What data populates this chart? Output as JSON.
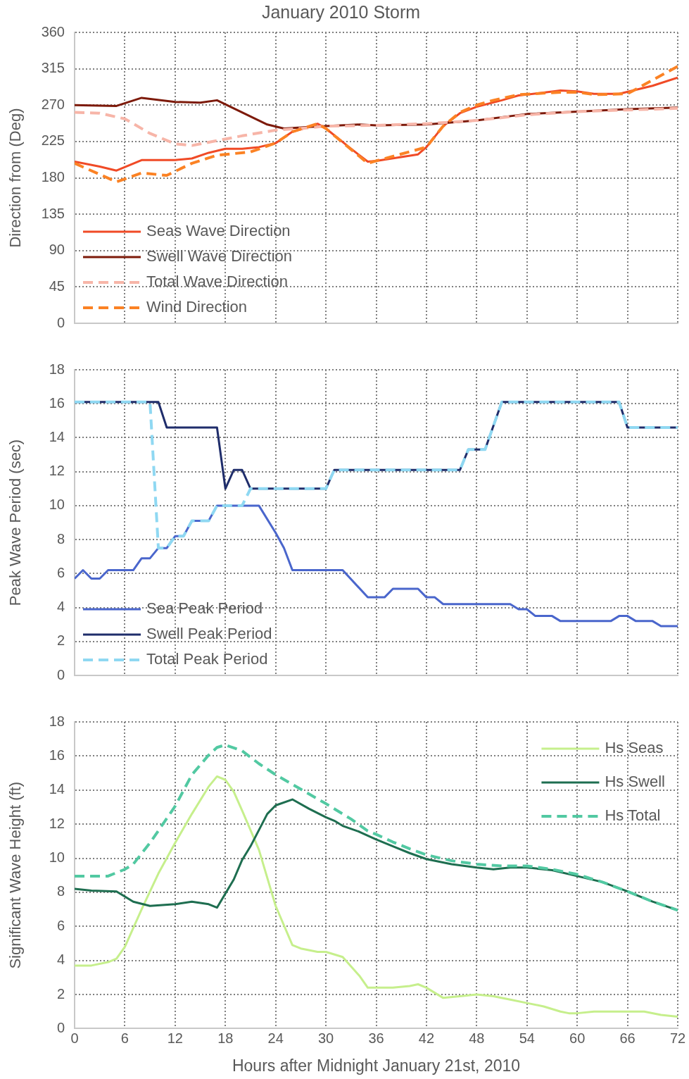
{
  "chart_data": [
    {
      "type": "line",
      "title": "January 2010 Storm",
      "ylabel": "Direction from (Deg)",
      "xlim": [
        0,
        72
      ],
      "xticks": [
        0,
        6,
        12,
        18,
        24,
        30,
        36,
        42,
        48,
        54,
        60,
        66,
        72
      ],
      "ylim": [
        0,
        360
      ],
      "yticks": [
        0,
        45,
        90,
        135,
        180,
        225,
        270,
        315,
        360
      ],
      "tick_labels": "y",
      "grid": true,
      "legend": "bottom left",
      "marker": "none",
      "series": [
        {
          "name": "Seas Wave Direction",
          "color": "#f04a26",
          "line_style": "solid",
          "x": [
            0,
            3,
            5,
            8,
            12,
            14,
            16,
            18,
            20,
            22,
            24,
            26,
            28,
            29,
            30,
            33,
            35,
            36,
            41,
            42,
            44,
            46,
            48,
            51,
            53,
            54,
            58,
            60,
            62,
            65,
            69,
            72
          ],
          "values": [
            200,
            194,
            189,
            202,
            202,
            204,
            211,
            216,
            216,
            218,
            223,
            237,
            243,
            247,
            241,
            216,
            200,
            201,
            209,
            218,
            244,
            260,
            268,
            276,
            282,
            283,
            288,
            287,
            284,
            284,
            294,
            304
          ]
        },
        {
          "name": "Swell Wave Direction",
          "color": "#7d1a0a",
          "line_style": "solid",
          "x": [
            0,
            5,
            8,
            12,
            15,
            17,
            20,
            23,
            25,
            28,
            30,
            34,
            36,
            42,
            48,
            54,
            60,
            66,
            72
          ],
          "values": [
            270,
            269,
            279,
            274,
            273,
            276,
            261,
            246,
            241,
            243,
            244,
            246,
            245,
            246,
            251,
            259,
            262,
            265,
            267
          ]
        },
        {
          "name": "Total Wave Direction",
          "color": "#f7b5a8",
          "line_style": "dashed",
          "x": [
            0,
            3,
            6,
            9,
            12,
            14,
            17,
            20,
            24,
            28,
            30,
            36,
            42,
            48,
            54,
            60,
            66,
            72
          ],
          "values": [
            261,
            260,
            253,
            235,
            222,
            220,
            226,
            232,
            239,
            242,
            244,
            245,
            247,
            251,
            258,
            262,
            264,
            266
          ]
        },
        {
          "name": "Wind Direction",
          "color": "#fb8224",
          "line_style": "dashed",
          "x": [
            0,
            5,
            8,
            11,
            14,
            17,
            21,
            24,
            26,
            29,
            30,
            35,
            36,
            42,
            44,
            46,
            48,
            50,
            53,
            58,
            60,
            62,
            66,
            69,
            72
          ],
          "values": [
            198,
            175,
            186,
            183,
            198,
            208,
            212,
            223,
            237,
            247,
            241,
            198,
            201,
            218,
            244,
            261,
            270,
            276,
            283,
            286,
            286,
            283,
            284,
            301,
            318
          ]
        }
      ]
    },
    {
      "type": "line",
      "ylabel": "Peak Wave Period (sec)",
      "xlim": [
        0,
        72
      ],
      "xticks": [
        0,
        6,
        12,
        18,
        24,
        30,
        36,
        42,
        48,
        54,
        60,
        66,
        72
      ],
      "ylim": [
        0,
        18
      ],
      "yticks": [
        0,
        2,
        4,
        6,
        8,
        10,
        12,
        14,
        16,
        18
      ],
      "tick_labels": "y",
      "grid": true,
      "legend": "bottom left",
      "marker": "none",
      "series": [
        {
          "name": "Sea Peak Period",
          "color": "#4a66cc",
          "line_style": "solid",
          "x": [
            0,
            1,
            2,
            3,
            4,
            7,
            8,
            9,
            10,
            11,
            12,
            13,
            14,
            16,
            17,
            22,
            24,
            25,
            26,
            32,
            35,
            37,
            38,
            41,
            42,
            43,
            44,
            52,
            53,
            54,
            55,
            57,
            58,
            64,
            65,
            66,
            67,
            69,
            70,
            72
          ],
          "values": [
            5.7,
            6.2,
            5.7,
            5.7,
            6.2,
            6.2,
            6.9,
            6.9,
            7.5,
            7.5,
            8.2,
            8.2,
            9.1,
            9.1,
            10,
            10,
            8.4,
            7.5,
            6.2,
            6.2,
            4.6,
            4.6,
            5.1,
            5.1,
            4.6,
            4.6,
            4.2,
            4.2,
            3.9,
            3.9,
            3.5,
            3.5,
            3.2,
            3.2,
            3.5,
            3.5,
            3.2,
            3.2,
            2.9,
            2.9
          ]
        },
        {
          "name": "Swell Peak Period",
          "color": "#1f2d6b",
          "line_style": "solid",
          "x": [
            0,
            10,
            11,
            17,
            18,
            19,
            20,
            21,
            30,
            31,
            46,
            47,
            49,
            51,
            65,
            66,
            72
          ],
          "values": [
            16.1,
            16.1,
            14.6,
            14.6,
            11,
            12.1,
            12.1,
            11,
            11,
            12.1,
            12.1,
            13.3,
            13.3,
            16.1,
            16.1,
            14.6,
            14.6
          ]
        },
        {
          "name": "Total Peak Period",
          "color": "#8fd8f2",
          "line_style": "dashed",
          "x": [
            0,
            9,
            10,
            11,
            12,
            13,
            14,
            16,
            17,
            20,
            21,
            30,
            31,
            46,
            47,
            49,
            51,
            65,
            66,
            72
          ],
          "values": [
            16.1,
            16.1,
            7.5,
            7.5,
            8.2,
            8.2,
            9.1,
            9.1,
            10,
            10,
            11,
            11,
            12.1,
            12.1,
            13.3,
            13.3,
            16.1,
            16.1,
            14.6,
            14.6
          ]
        }
      ]
    },
    {
      "type": "line",
      "xlabel": "Hours after Midnight January 21st, 2010",
      "ylabel": "Significant Wave Height (ft)",
      "xlim": [
        0,
        72
      ],
      "xticks": [
        0,
        6,
        12,
        18,
        24,
        30,
        36,
        42,
        48,
        54,
        60,
        66,
        72
      ],
      "ylim": [
        0,
        18
      ],
      "yticks": [
        0,
        2,
        4,
        6,
        8,
        10,
        12,
        14,
        16,
        18
      ],
      "grid": true,
      "legend": "top right",
      "marker": "none",
      "series": [
        {
          "name": "Hs Seas",
          "color": "#c6ef8c",
          "line_style": "solid",
          "x": [
            0,
            2,
            4,
            5,
            6,
            8,
            10,
            12,
            14,
            16,
            17,
            18,
            19,
            20,
            22,
            24,
            26,
            27,
            29,
            30,
            32,
            34,
            35,
            36,
            38,
            40,
            41,
            42,
            44,
            46,
            48,
            50,
            52,
            54,
            56,
            58,
            59,
            60,
            62,
            64,
            66,
            68,
            70,
            72
          ],
          "values": [
            3.7,
            3.7,
            3.9,
            4.1,
            4.8,
            7.0,
            9.1,
            10.9,
            12.6,
            14.2,
            14.8,
            14.6,
            13.9,
            12.8,
            10.5,
            7.2,
            4.9,
            4.7,
            4.5,
            4.5,
            4.2,
            3.1,
            2.4,
            2.4,
            2.4,
            2.5,
            2.6,
            2.4,
            1.8,
            1.9,
            2.0,
            1.9,
            1.7,
            1.5,
            1.3,
            1.0,
            0.9,
            0.9,
            1.0,
            1.0,
            1.0,
            1.0,
            0.8,
            0.7
          ]
        },
        {
          "name": "Hs Swell",
          "color": "#1e6e50",
          "line_style": "solid",
          "x": [
            0,
            2,
            5,
            7,
            9,
            12,
            14,
            16,
            17,
            19,
            20,
            21,
            23,
            24,
            26,
            28,
            30,
            31,
            32,
            34,
            36,
            38,
            40,
            42,
            45,
            48,
            50,
            52,
            54,
            57,
            60,
            63,
            66,
            69,
            72
          ],
          "values": [
            8.2,
            8.1,
            8.05,
            7.45,
            7.2,
            7.3,
            7.45,
            7.3,
            7.1,
            8.75,
            9.9,
            10.7,
            12.6,
            13.1,
            13.45,
            12.9,
            12.4,
            12.2,
            11.9,
            11.55,
            11.1,
            10.7,
            10.3,
            9.95,
            9.65,
            9.45,
            9.35,
            9.45,
            9.45,
            9.3,
            8.95,
            8.6,
            8.05,
            7.45,
            6.95
          ]
        },
        {
          "name": "Hs Total",
          "color": "#52c9a2",
          "line_style": "dashed",
          "x": [
            0,
            4,
            6,
            7,
            9,
            12,
            14,
            16,
            17,
            18,
            20,
            22,
            24,
            27,
            30,
            33,
            35,
            36,
            38,
            40,
            42,
            45,
            48,
            51,
            54,
            57,
            60,
            63,
            66,
            69,
            72
          ],
          "values": [
            8.95,
            8.95,
            9.35,
            9.65,
            10.9,
            13.05,
            14.9,
            16.05,
            16.5,
            16.65,
            16.3,
            15.55,
            14.9,
            14.05,
            13.2,
            12.3,
            11.6,
            11.4,
            10.95,
            10.55,
            10.2,
            9.85,
            9.65,
            9.55,
            9.55,
            9.35,
            9.05,
            8.6,
            8.05,
            7.45,
            6.95
          ]
        }
      ]
    }
  ]
}
